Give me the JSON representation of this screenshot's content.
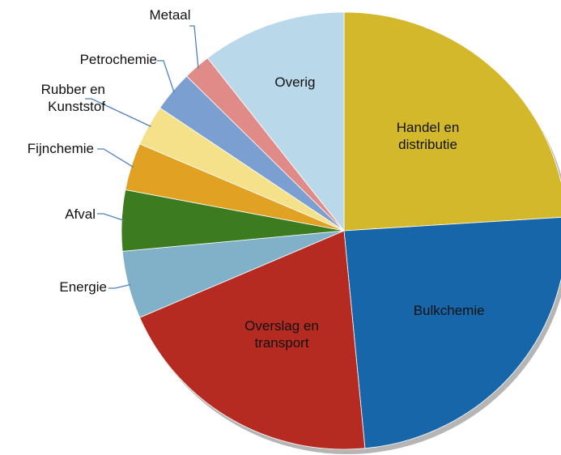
{
  "chart_data": {
    "type": "pie",
    "categories": [
      "Handel en distributie",
      "Bulkchemie",
      "Overslag en transport",
      "Energie",
      "Afval",
      "Fijnchemie",
      "Rubber en Kunststof",
      "Petrochemie",
      "Metaal",
      "Overig"
    ],
    "values": [
      24,
      24.5,
      20,
      5,
      4.5,
      3.5,
      3,
      3,
      2,
      10.5
    ],
    "colors": [
      "#d3b82c",
      "#1766a9",
      "#b52b21",
      "#80b1c9",
      "#3c7b1f",
      "#e1a223",
      "#f4e18a",
      "#7c9fd1",
      "#e08b87",
      "#b9d9eb"
    ]
  }
}
